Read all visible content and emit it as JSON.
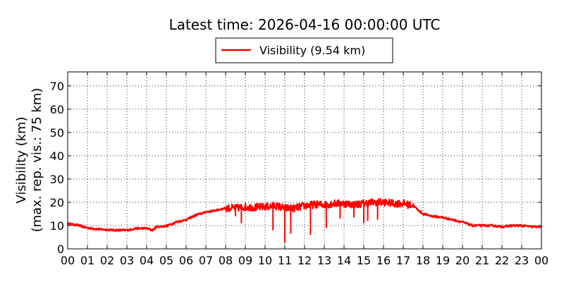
{
  "chart_data": {
    "type": "line",
    "title": "Latest time: 2026-04-16 00:00:00 UTC",
    "ylabel": [
      "Visibility (km)",
      "(max. rep. vis.: 75 km)"
    ],
    "xlabel": "",
    "xlim": [
      0,
      24
    ],
    "ylim": [
      0,
      76
    ],
    "x_ticks": [
      0,
      1,
      2,
      3,
      4,
      5,
      6,
      7,
      8,
      9,
      10,
      11,
      12,
      13,
      14,
      15,
      16,
      17,
      18,
      19,
      20,
      21,
      22,
      23,
      24
    ],
    "x_tick_labels": [
      "00",
      "01",
      "02",
      "03",
      "04",
      "05",
      "06",
      "07",
      "08",
      "09",
      "10",
      "11",
      "12",
      "13",
      "14",
      "15",
      "16",
      "17",
      "18",
      "19",
      "20",
      "21",
      "22",
      "23",
      "00"
    ],
    "y_ticks": [
      0,
      10,
      20,
      30,
      40,
      50,
      60,
      70
    ],
    "y_tick_labels": [
      "0",
      "10",
      "20",
      "30",
      "40",
      "50",
      "60",
      "70"
    ],
    "grid": true,
    "grid_style": "dotted",
    "legend_position": "top-center",
    "series": [
      {
        "name": "Visibility (9.54 km)",
        "color": "#ff0000",
        "x": [
          0,
          0.5,
          1,
          1.5,
          2,
          2.5,
          3,
          3.5,
          4,
          4.3,
          4.5,
          5,
          5.5,
          6,
          6.5,
          7,
          7.5,
          8,
          8.5,
          9,
          9.5,
          10,
          10.5,
          11,
          11.5,
          12,
          12.5,
          13,
          13.5,
          14,
          14.5,
          15,
          15.5,
          16,
          16.5,
          17,
          17.5,
          18,
          18.5,
          19,
          19.5,
          20,
          20.5,
          21,
          21.5,
          22,
          22.5,
          23,
          23.5,
          24
        ],
        "values": [
          10.8,
          10.2,
          9,
          8.5,
          8.2,
          8,
          8,
          8.8,
          8.8,
          8,
          9.5,
          9.8,
          11.5,
          12.5,
          14.5,
          15.8,
          16.5,
          17.5,
          17.5,
          18,
          17.8,
          18,
          18.5,
          17.5,
          17.5,
          18.5,
          19,
          19,
          19.5,
          19.5,
          19,
          19.5,
          20,
          20,
          19.5,
          19.5,
          18.5,
          15,
          14,
          13.5,
          12.5,
          11.5,
          10,
          10,
          10,
          9.5,
          10,
          10,
          9.5,
          9.5
        ]
      }
    ],
    "spikes": [
      {
        "x": 8.5,
        "y": 14
      },
      {
        "x": 8.8,
        "y": 11
      },
      {
        "x": 10.4,
        "y": 8
      },
      {
        "x": 11.0,
        "y": 2.5
      },
      {
        "x": 11.3,
        "y": 6.5
      },
      {
        "x": 12.3,
        "y": 6
      },
      {
        "x": 13.1,
        "y": 9
      },
      {
        "x": 13.8,
        "y": 13
      },
      {
        "x": 14.5,
        "y": 13.5
      },
      {
        "x": 15.0,
        "y": 11
      },
      {
        "x": 15.2,
        "y": 12
      },
      {
        "x": 15.7,
        "y": 12.5
      }
    ]
  }
}
